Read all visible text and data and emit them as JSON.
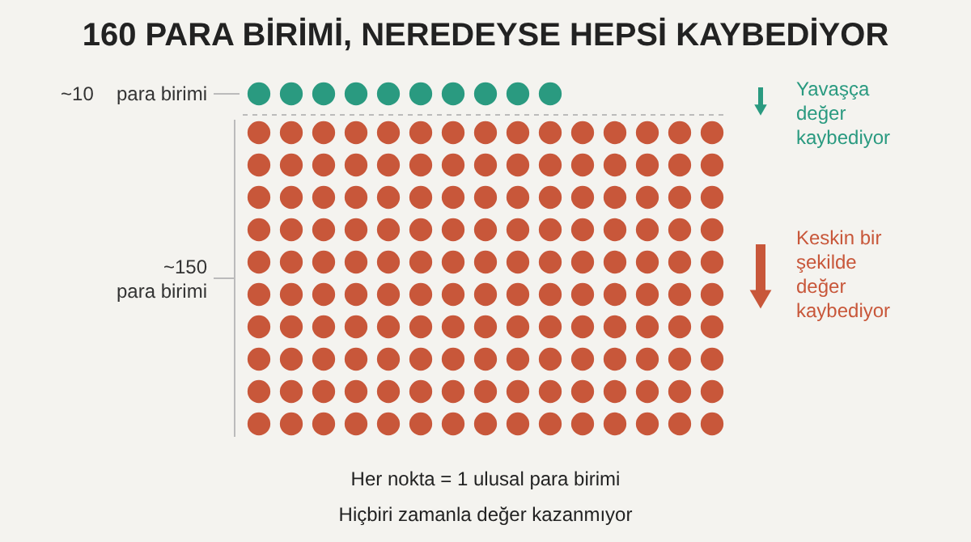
{
  "chart_data": {
    "type": "other",
    "title": "160 PARA BİRİMİ, NEREDEYSE HEPSİ KAYBEDİYOR",
    "categories": [
      "para birimi",
      "para birimi"
    ],
    "values": [
      10,
      150
    ],
    "value_labels": [
      "~10",
      "~150"
    ],
    "colors": [
      "#2a9a80",
      "#c8573a"
    ],
    "annotations": [
      "Yavaşça değer kaybediyor",
      "Keskin bir şekilde değer kaybediyor",
      "Her nokta = 1 ulusal para birimi",
      "Hiçbiri zamanla değer kazanmıyor"
    ]
  }
}
